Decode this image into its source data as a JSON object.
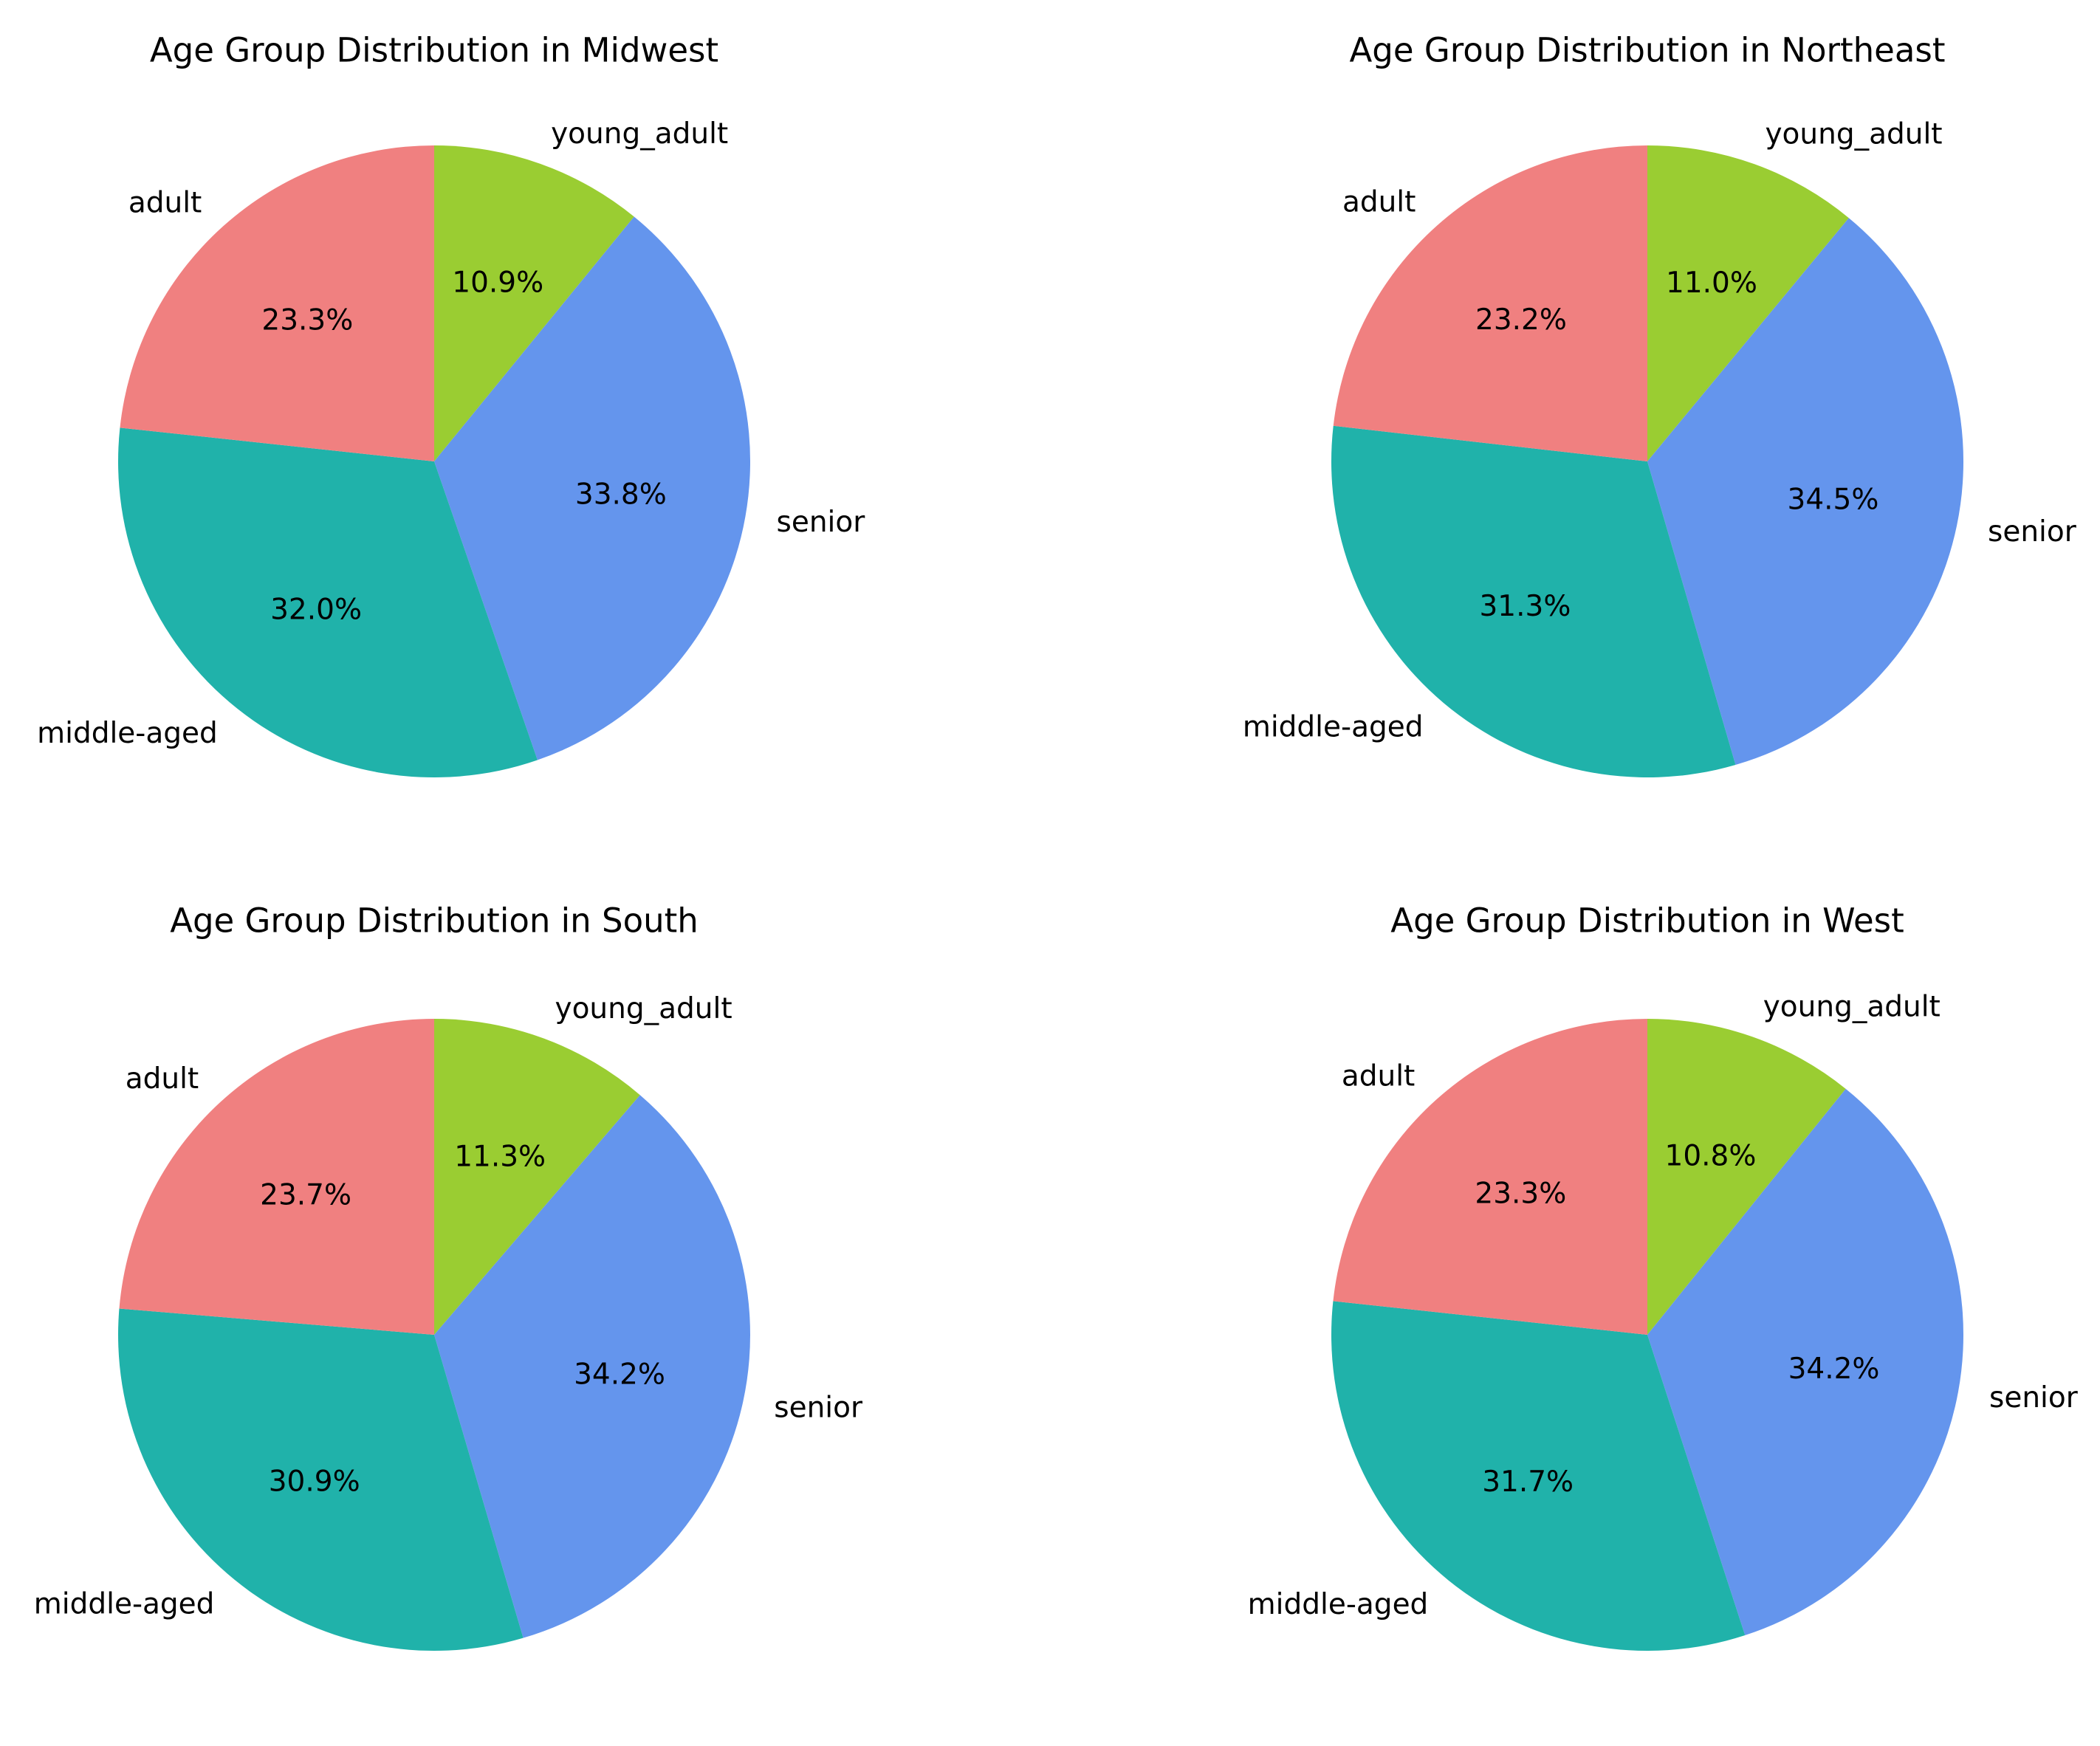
{
  "chart_data": [
    {
      "type": "pie",
      "title": "Age Group Distribution in Midwest",
      "categories": [
        "young_adult",
        "senior",
        "middle-aged",
        "adult"
      ],
      "values": [
        10.9,
        33.8,
        32.0,
        23.3
      ],
      "percent_labels": [
        "10.9%",
        "33.8%",
        "32.0%",
        "23.3%"
      ],
      "start_angle_deg": 90,
      "direction": "clockwise"
    },
    {
      "type": "pie",
      "title": "Age Group Distribution in Northeast",
      "categories": [
        "young_adult",
        "senior",
        "middle-aged",
        "adult"
      ],
      "values": [
        11.0,
        34.5,
        31.3,
        23.2
      ],
      "percent_labels": [
        "11.0%",
        "34.5%",
        "31.3%",
        "23.2%"
      ],
      "start_angle_deg": 90,
      "direction": "clockwise"
    },
    {
      "type": "pie",
      "title": "Age Group Distribution in South",
      "categories": [
        "young_adult",
        "senior",
        "middle-aged",
        "adult"
      ],
      "values": [
        11.3,
        34.2,
        30.9,
        23.7
      ],
      "percent_labels": [
        "11.3%",
        "34.2%",
        "30.9%",
        "23.7%"
      ],
      "start_angle_deg": 90,
      "direction": "clockwise"
    },
    {
      "type": "pie",
      "title": "Age Group Distribution in West",
      "categories": [
        "young_adult",
        "senior",
        "middle-aged",
        "adult"
      ],
      "values": [
        10.8,
        34.2,
        31.7,
        23.3
      ],
      "percent_labels": [
        "10.8%",
        "34.2%",
        "31.7%",
        "23.3%"
      ],
      "start_angle_deg": 90,
      "direction": "clockwise"
    }
  ],
  "colors": {
    "young_adult": "#9ACD32",
    "senior": "#6495ED",
    "middle-aged": "#20B2AA",
    "adult": "#F08080"
  }
}
